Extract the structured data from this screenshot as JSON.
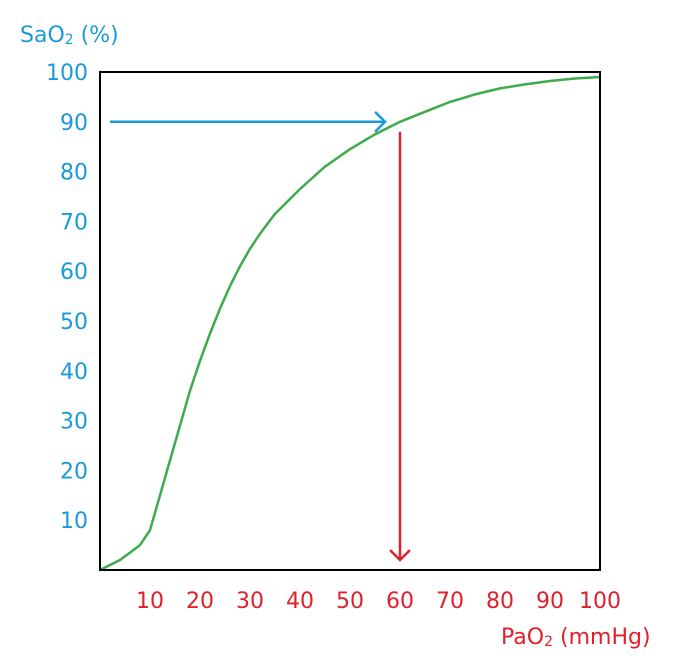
{
  "chart_data": {
    "type": "line",
    "title": "",
    "ylabel": {
      "main": "SaO",
      "sub": "2",
      "unit": " (%)"
    },
    "xlabel": {
      "main": "PaO",
      "sub": "2",
      "unit": " (mmHg)"
    },
    "xlim": [
      0,
      100
    ],
    "ylim": [
      0,
      100
    ],
    "x_ticks": [
      10,
      20,
      30,
      40,
      50,
      60,
      70,
      80,
      90,
      100
    ],
    "y_ticks": [
      10,
      20,
      30,
      40,
      50,
      60,
      70,
      80,
      90,
      100
    ],
    "grid": false,
    "series": [
      {
        "color": "#3cab4c",
        "x": [
          0,
          2,
          4,
          6,
          8,
          10,
          12,
          14,
          16,
          18,
          20,
          22,
          24,
          26,
          28,
          30,
          32,
          35,
          40,
          45,
          50,
          55,
          60,
          65,
          70,
          75,
          80,
          85,
          90,
          95,
          100
        ],
        "y": [
          0,
          1,
          2,
          3.5,
          5,
          8,
          15,
          22,
          29,
          36,
          42,
          47.5,
          52.5,
          57,
          61,
          64.5,
          67.5,
          71.5,
          76.5,
          81,
          84.5,
          87.5,
          90,
          92,
          94,
          95.5,
          96.7,
          97.5,
          98.2,
          98.7,
          99
        ]
      }
    ],
    "annotations": [
      {
        "type": "arrow",
        "color": "#1a9bd7",
        "from": [
          2,
          90
        ],
        "to": [
          57,
          90
        ]
      },
      {
        "type": "arrow",
        "color": "#e0202b",
        "from": [
          60,
          88
        ],
        "to": [
          60,
          2
        ]
      }
    ]
  }
}
